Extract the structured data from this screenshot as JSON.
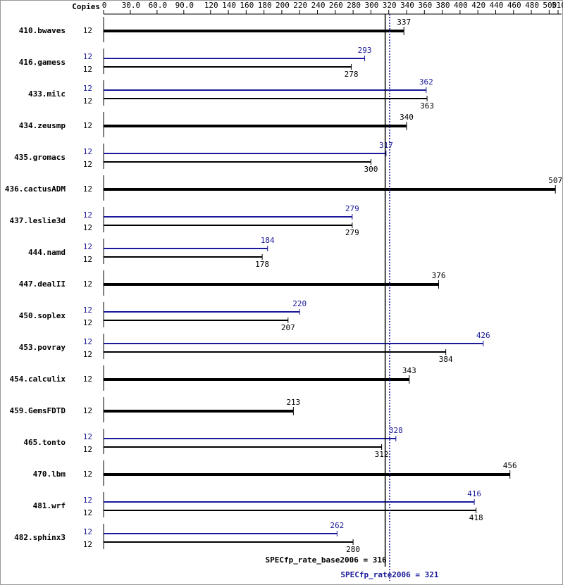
{
  "chart_data": {
    "type": "bar",
    "orientation": "horizontal",
    "copies_header": "Copies",
    "categories": [
      "410.bwaves",
      "416.gamess",
      "433.milc",
      "434.zeusmp",
      "435.gromacs",
      "436.cactusADM",
      "437.leslie3d",
      "444.namd",
      "447.dealII",
      "450.soplex",
      "453.povray",
      "454.calculix",
      "459.GemsFDTD",
      "465.tonto",
      "470.lbm",
      "481.wrf",
      "482.sphinx3"
    ],
    "series": [
      {
        "color": "#000000",
        "copies": [
          12,
          12,
          12,
          12,
          12,
          12,
          12,
          12,
          12,
          12,
          12,
          12,
          12,
          12,
          12,
          12,
          12
        ],
        "values": [
          337,
          278,
          363,
          340,
          300,
          507,
          279,
          178,
          376,
          207,
          384,
          343,
          213,
          312,
          456,
          418,
          280
        ]
      },
      {
        "color": "#191999",
        "copies": [
          null,
          12,
          12,
          null,
          12,
          null,
          12,
          12,
          null,
          12,
          12,
          null,
          null,
          12,
          null,
          12,
          12
        ],
        "values": [
          null,
          293,
          362,
          null,
          317,
          null,
          279,
          184,
          null,
          220,
          426,
          null,
          null,
          328,
          null,
          416,
          262
        ]
      }
    ],
    "xlim": [
      0,
      510
    ],
    "xticks": [
      0,
      {
        "value": 30,
        "label": "30.0"
      },
      {
        "value": 60,
        "label": "60.0"
      },
      {
        "value": 90,
        "label": "90.0"
      },
      120,
      140,
      160,
      180,
      200,
      220,
      240,
      260,
      280,
      300,
      320,
      340,
      360,
      380,
      400,
      420,
      440,
      460,
      480,
      500,
      510
    ],
    "reference_lines": [
      {
        "label": "SPECfp_rate_base2006 = 316",
        "value": 316,
        "color": "#000000",
        "style": "solid"
      },
      {
        "label": "SPECfp_rate2006 = 321",
        "value": 321,
        "color": "#191999",
        "style": "dotted"
      }
    ]
  }
}
